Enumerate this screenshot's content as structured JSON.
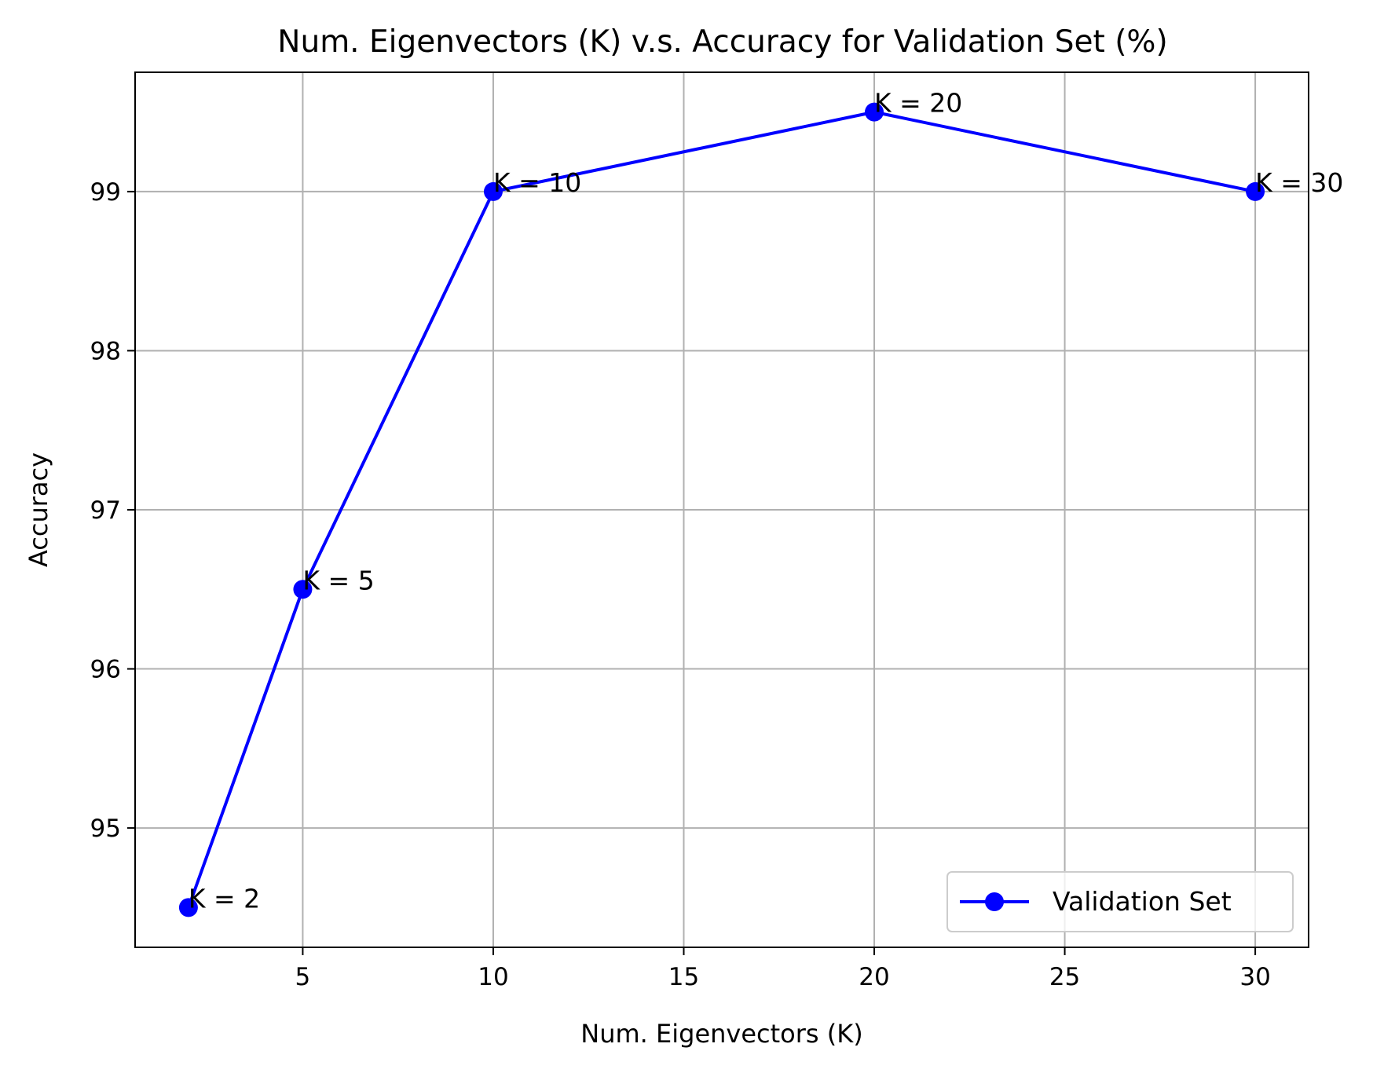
{
  "chart_data": {
    "type": "line",
    "title": "Num. Eigenvectors (K) v.s. Accuracy for Validation Set (%)",
    "xlabel": "Num. Eigenvectors (K)",
    "ylabel": "Accuracy",
    "x": [
      2,
      5,
      10,
      20,
      30
    ],
    "series": [
      {
        "name": "Validation Set",
        "values": [
          94.5,
          96.5,
          99.0,
          99.5,
          99.0
        ],
        "color": "#0000ff",
        "marker": "circle"
      }
    ],
    "annotations": [
      "K = 2",
      "K = 5",
      "K = 10",
      "K = 20",
      "K = 30"
    ],
    "xticks": [
      5,
      10,
      15,
      20,
      25,
      30
    ],
    "yticks": [
      95,
      96,
      97,
      98,
      99
    ],
    "xlim": [
      0.6,
      31.4
    ],
    "ylim": [
      94.25,
      99.75
    ],
    "grid": true,
    "grid_color": "#b0b0b0",
    "legend_position": "lower-right"
  }
}
